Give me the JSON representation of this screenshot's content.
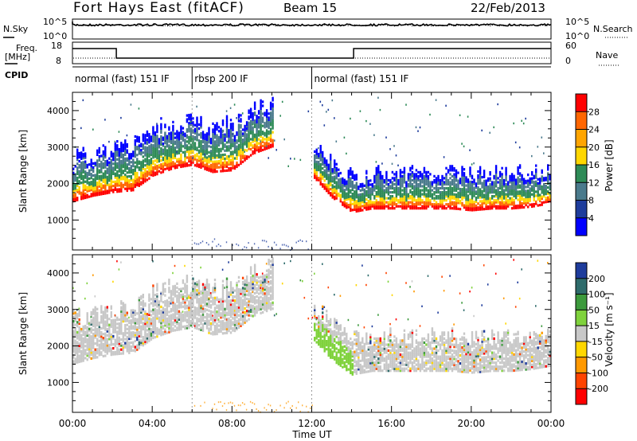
{
  "header": {
    "station": "Fort Hays East (fitACF)",
    "beam": "Beam 15",
    "date": "22/Feb/2013"
  },
  "noise_panel": {
    "left_label": "N.Sky",
    "right_label": "N.Search",
    "left_ticks": [
      "10^5",
      "10^0"
    ],
    "right_ticks": [
      "10^5",
      "10^0"
    ]
  },
  "freq_panel": {
    "left_label_1": "Freq.",
    "left_label_2": "[MHz]",
    "right_label": "Nave",
    "left_ticks": [
      "18",
      "8"
    ],
    "right_ticks": [
      "60",
      "0"
    ],
    "freq_step_hours": [
      2.2,
      14.1
    ]
  },
  "cpid_panel": {
    "label": "CPID",
    "segments": [
      {
        "start": 0,
        "end": 6,
        "text": "normal (fast) 151 IF"
      },
      {
        "start": 6,
        "end": 12,
        "text": "rbsp 200 IF"
      },
      {
        "start": 12,
        "end": 24,
        "text": "normal (fast) 151 IF"
      }
    ]
  },
  "x_axis": {
    "title": "Time UT",
    "ticks": [
      "00:00",
      "04:00",
      "08:00",
      "12:00",
      "16:00",
      "20:00",
      "00:00"
    ]
  },
  "power_panel": {
    "ylabel": "Slant Range [km]",
    "yticks": [
      "4000",
      "3000",
      "2000",
      "1000"
    ],
    "colorbar_title": "Power [dB]",
    "colorbar_ticks": [
      "28",
      "24",
      "20",
      "16",
      "12",
      "8",
      "4"
    ],
    "colorbar_colors": [
      "#ff0000",
      "#ff6600",
      "#ffa500",
      "#ffd700",
      "#2e8b57",
      "#4a7a8c",
      "#1e3c9c",
      "#0000ff"
    ]
  },
  "velocity_panel": {
    "ylabel": "Slant Range [km]",
    "yticks": [
      "4000",
      "3000",
      "2000",
      "1000"
    ],
    "colorbar_title": "Velocity [m s⁻¹]",
    "colorbar_ticks": [
      "200",
      "100",
      "50",
      "15",
      "-15",
      "-50",
      "-100",
      "-200"
    ],
    "colorbar_colors": [
      "#1e3c9c",
      "#2e6b6b",
      "#3c9a3c",
      "#7fd23c",
      "#c8c8c8",
      "#ffd700",
      "#ff9900",
      "#ff4400",
      "#ff0000"
    ]
  },
  "chart_data": {
    "type": "heatmap",
    "title": "Fort Hays East (fitACF)",
    "xlabel": "Time UT",
    "ylabel": "Slant Range [km]",
    "xlim": [
      0,
      24
    ],
    "ylim": [
      180,
      4500
    ],
    "series": [
      {
        "name": "Power",
        "unit": "dB",
        "colorbar_range": [
          0,
          30
        ]
      },
      {
        "name": "Velocity",
        "unit": "m s^-1",
        "colorbar_range": [
          -250,
          250
        ]
      }
    ],
    "echo_band_lower_edge_km": {
      "hours": [
        0,
        1,
        2,
        3,
        4,
        5,
        6,
        7,
        8,
        9,
        10,
        11,
        12,
        13,
        14,
        15,
        16,
        17,
        18,
        19,
        20,
        21,
        22,
        23,
        24
      ],
      "power": [
        1500,
        1650,
        1750,
        1800,
        2200,
        2400,
        2500,
        2300,
        2350,
        2800,
        3000,
        null,
        2200,
        1600,
        1200,
        1300,
        1300,
        1300,
        1300,
        1300,
        1250,
        1300,
        1300,
        1350,
        1450
      ]
    }
  }
}
